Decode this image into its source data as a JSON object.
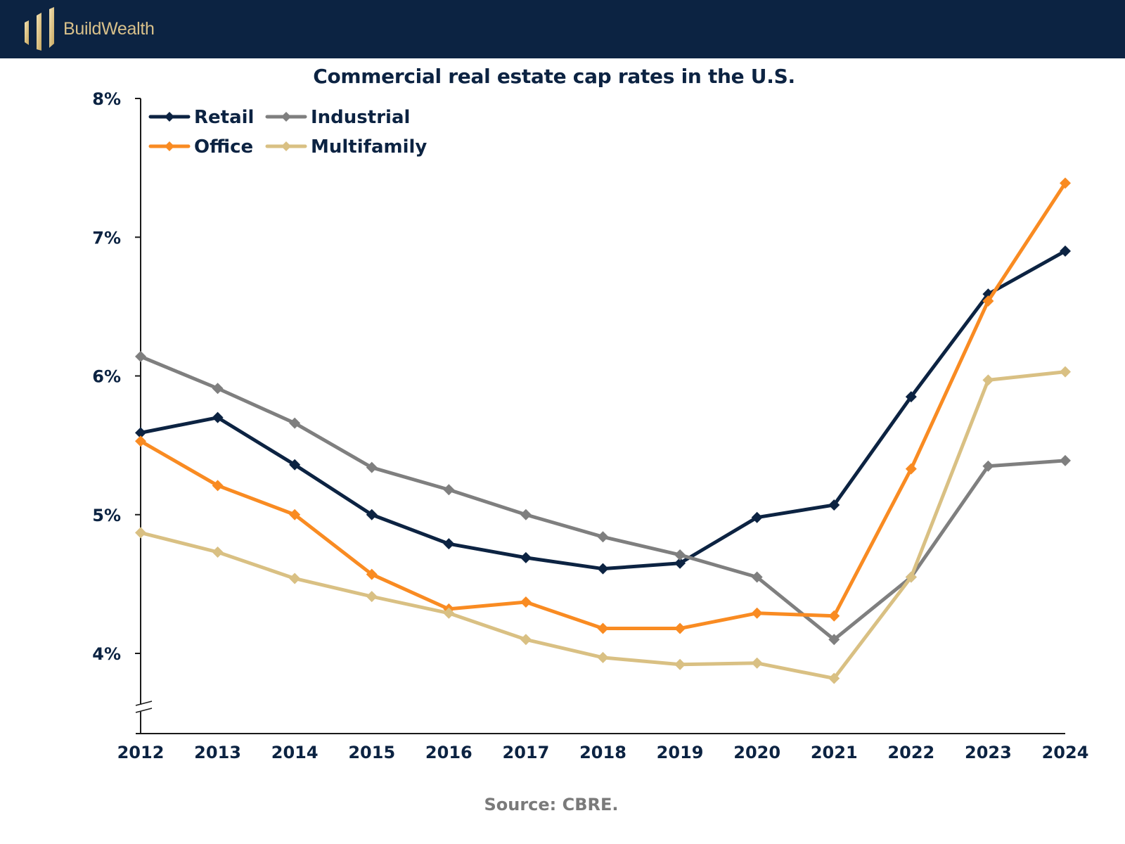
{
  "header": {
    "brand": "BuildWealth",
    "logo_icon": "bar-columns-logo-icon",
    "background": "#0c2342",
    "brand_color": "#d8c08a"
  },
  "source": "Source: CBRE.",
  "chart_data": {
    "type": "line",
    "title": "Commercial real estate cap rates in the U.S.",
    "xlabel": "",
    "ylabel": "",
    "x": [
      "2012",
      "2013",
      "2014",
      "2015",
      "2016",
      "2017",
      "2018",
      "2019",
      "2020",
      "2021",
      "2022",
      "2023",
      "2024"
    ],
    "y_ticks": [
      "4%",
      "5%",
      "6%",
      "7%",
      "8%"
    ],
    "y_tick_values": [
      4,
      5,
      6,
      7,
      8
    ],
    "ylim": [
      3.42,
      8
    ],
    "axis_break": true,
    "grid": false,
    "legend_position": "top-left",
    "marker": "diamond",
    "series": [
      {
        "name": "Retail",
        "color": "#0c2342",
        "values": [
          5.59,
          5.7,
          5.36,
          5.0,
          4.79,
          4.69,
          4.61,
          4.65,
          4.98,
          5.07,
          5.85,
          6.59,
          6.9
        ]
      },
      {
        "name": "Industrial",
        "color": "#7f7f7f",
        "values": [
          6.14,
          5.91,
          5.66,
          5.34,
          5.18,
          5.0,
          4.84,
          4.71,
          4.55,
          4.1,
          4.55,
          5.35,
          5.39
        ]
      },
      {
        "name": "Office",
        "color": "#f98b22",
        "values": [
          5.53,
          5.21,
          5.0,
          4.57,
          4.32,
          4.37,
          4.18,
          4.18,
          4.29,
          4.27,
          5.33,
          6.54,
          7.39
        ]
      },
      {
        "name": "Multifamily",
        "color": "#d9c083",
        "values": [
          4.87,
          4.73,
          4.54,
          4.41,
          4.29,
          4.1,
          3.97,
          3.92,
          3.93,
          3.82,
          4.55,
          5.97,
          6.03
        ]
      }
    ]
  }
}
